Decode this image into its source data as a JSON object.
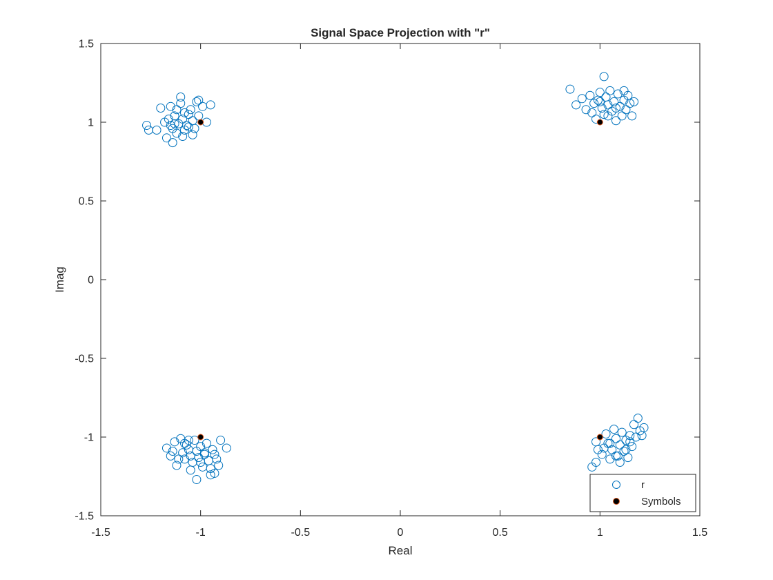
{
  "chart_data": {
    "type": "scatter",
    "title": "Signal Space Projection with \"r\"",
    "xlabel": "Real",
    "ylabel": "Imag",
    "xlim": [
      -1.5,
      1.5
    ],
    "ylim": [
      -1.5,
      1.5
    ],
    "xticks": [
      -1.5,
      -1,
      -0.5,
      0,
      0.5,
      1,
      1.5
    ],
    "xtick_labels": [
      "-1.5",
      "-1",
      "-0.5",
      "0",
      "0.5",
      "1",
      "1.5"
    ],
    "yticks": [
      -1.5,
      -1,
      -0.5,
      0,
      0.5,
      1,
      1.5
    ],
    "ytick_labels": [
      "-1.5",
      "-1",
      "-0.5",
      "0",
      "0.5",
      "1",
      "1.5"
    ],
    "grid": false,
    "legend_position": "bottom-right",
    "series": [
      {
        "name": "r",
        "marker": "open-circle",
        "color": "#0072BD",
        "points": [
          [
            -1.27,
            0.98
          ],
          [
            -1.26,
            0.95
          ],
          [
            -1.22,
            0.95
          ],
          [
            -1.2,
            1.09
          ],
          [
            -1.18,
            1.0
          ],
          [
            -1.16,
            1.02
          ],
          [
            -1.15,
            0.98
          ],
          [
            -1.14,
            0.96
          ],
          [
            -1.13,
            1.04
          ],
          [
            -1.12,
            0.93
          ],
          [
            -1.11,
            0.99
          ],
          [
            -1.1,
            1.12
          ],
          [
            -1.1,
            1.16
          ],
          [
            -1.09,
            1.02
          ],
          [
            -1.08,
            0.95
          ],
          [
            -1.07,
            0.98
          ],
          [
            -1.06,
            1.05
          ],
          [
            -1.05,
            1.08
          ],
          [
            -1.04,
            1.01
          ],
          [
            -1.03,
            0.96
          ],
          [
            -1.02,
            1.13
          ],
          [
            -1.01,
            1.04
          ],
          [
            -0.99,
            1.1
          ],
          [
            -0.97,
            1.0
          ],
          [
            -0.95,
            1.11
          ],
          [
            -1.17,
            0.9
          ],
          [
            -1.14,
            0.87
          ],
          [
            -1.12,
            1.08
          ],
          [
            -1.09,
            0.91
          ],
          [
            -1.04,
            0.92
          ],
          [
            -1.01,
            1.14
          ],
          [
            -1.13,
            0.99
          ],
          [
            -1.06,
            0.97
          ],
          [
            -1.15,
            1.1
          ],
          [
            -1.08,
            1.06
          ],
          [
            -1.17,
            -1.07
          ],
          [
            -1.15,
            -1.12
          ],
          [
            -1.13,
            -1.03
          ],
          [
            -1.12,
            -1.18
          ],
          [
            -1.1,
            -1.01
          ],
          [
            -1.09,
            -1.1
          ],
          [
            -1.08,
            -1.14
          ],
          [
            -1.07,
            -1.05
          ],
          [
            -1.06,
            -1.08
          ],
          [
            -1.05,
            -1.12
          ],
          [
            -1.04,
            -1.16
          ],
          [
            -1.03,
            -1.02
          ],
          [
            -1.02,
            -1.09
          ],
          [
            -1.01,
            -1.13
          ],
          [
            -1.0,
            -1.06
          ],
          [
            -0.99,
            -1.19
          ],
          [
            -0.98,
            -1.11
          ],
          [
            -0.97,
            -1.04
          ],
          [
            -0.96,
            -1.15
          ],
          [
            -0.95,
            -1.2
          ],
          [
            -0.94,
            -1.08
          ],
          [
            -0.93,
            -1.23
          ],
          [
            -0.92,
            -1.14
          ],
          [
            -0.91,
            -1.18
          ],
          [
            -0.9,
            -1.02
          ],
          [
            -0.87,
            -1.07
          ],
          [
            -1.02,
            -1.27
          ],
          [
            -0.95,
            -1.24
          ],
          [
            -1.11,
            -1.14
          ],
          [
            -1.05,
            -1.21
          ],
          [
            -0.98,
            -1.1
          ],
          [
            -1.08,
            -1.04
          ],
          [
            -1.0,
            -1.16
          ],
          [
            -0.93,
            -1.11
          ],
          [
            -1.14,
            -1.09
          ],
          [
            -1.06,
            -1.02
          ],
          [
            0.85,
            1.21
          ],
          [
            0.88,
            1.11
          ],
          [
            0.91,
            1.15
          ],
          [
            0.93,
            1.08
          ],
          [
            0.95,
            1.17
          ],
          [
            0.97,
            1.12
          ],
          [
            0.98,
            1.02
          ],
          [
            0.99,
            1.14
          ],
          [
            1.0,
            1.19
          ],
          [
            1.01,
            1.09
          ],
          [
            1.02,
            1.05
          ],
          [
            1.02,
            1.29
          ],
          [
            1.03,
            1.16
          ],
          [
            1.04,
            1.11
          ],
          [
            1.05,
            1.2
          ],
          [
            1.06,
            1.07
          ],
          [
            1.07,
            1.13
          ],
          [
            1.08,
            1.01
          ],
          [
            1.09,
            1.18
          ],
          [
            1.1,
            1.1
          ],
          [
            1.11,
            1.04
          ],
          [
            1.12,
            1.14
          ],
          [
            1.13,
            1.08
          ],
          [
            1.14,
            1.17
          ],
          [
            1.15,
            1.12
          ],
          [
            1.16,
            1.04
          ],
          [
            1.17,
            1.13
          ],
          [
            0.96,
            1.06
          ],
          [
            1.0,
            1.13
          ],
          [
            1.04,
            1.04
          ],
          [
            1.08,
            1.09
          ],
          [
            1.12,
            1.2
          ],
          [
            0.96,
            -1.19
          ],
          [
            0.98,
            -1.03
          ],
          [
            0.99,
            -1.08
          ],
          [
            1.01,
            -1.11
          ],
          [
            1.03,
            -0.98
          ],
          [
            1.04,
            -1.04
          ],
          [
            1.05,
            -1.14
          ],
          [
            1.06,
            -1.08
          ],
          [
            1.07,
            -0.95
          ],
          [
            1.08,
            -1.01
          ],
          [
            1.09,
            -1.12
          ],
          [
            1.1,
            -1.05
          ],
          [
            1.11,
            -0.97
          ],
          [
            1.12,
            -1.09
          ],
          [
            1.13,
            -1.02
          ],
          [
            1.14,
            -1.13
          ],
          [
            1.15,
            -0.99
          ],
          [
            1.16,
            -1.06
          ],
          [
            1.17,
            -0.92
          ],
          [
            1.18,
            -1.0
          ],
          [
            1.19,
            -0.88
          ],
          [
            1.2,
            -0.96
          ],
          [
            1.21,
            -0.99
          ],
          [
            1.22,
            -0.94
          ],
          [
            1.1,
            -1.16
          ],
          [
            1.05,
            -1.04
          ],
          [
            1.13,
            -1.08
          ],
          [
            0.98,
            -1.16
          ],
          [
            1.08,
            -1.12
          ],
          [
            1.15,
            -1.03
          ],
          [
            1.02,
            -1.07
          ]
        ]
      },
      {
        "name": "Symbols",
        "marker": "filled-circle",
        "color": "#000000",
        "edge_color": "#D95319",
        "points": [
          [
            -1,
            1
          ],
          [
            1,
            1
          ],
          [
            -1,
            -1
          ],
          [
            1,
            -1
          ]
        ]
      }
    ]
  }
}
